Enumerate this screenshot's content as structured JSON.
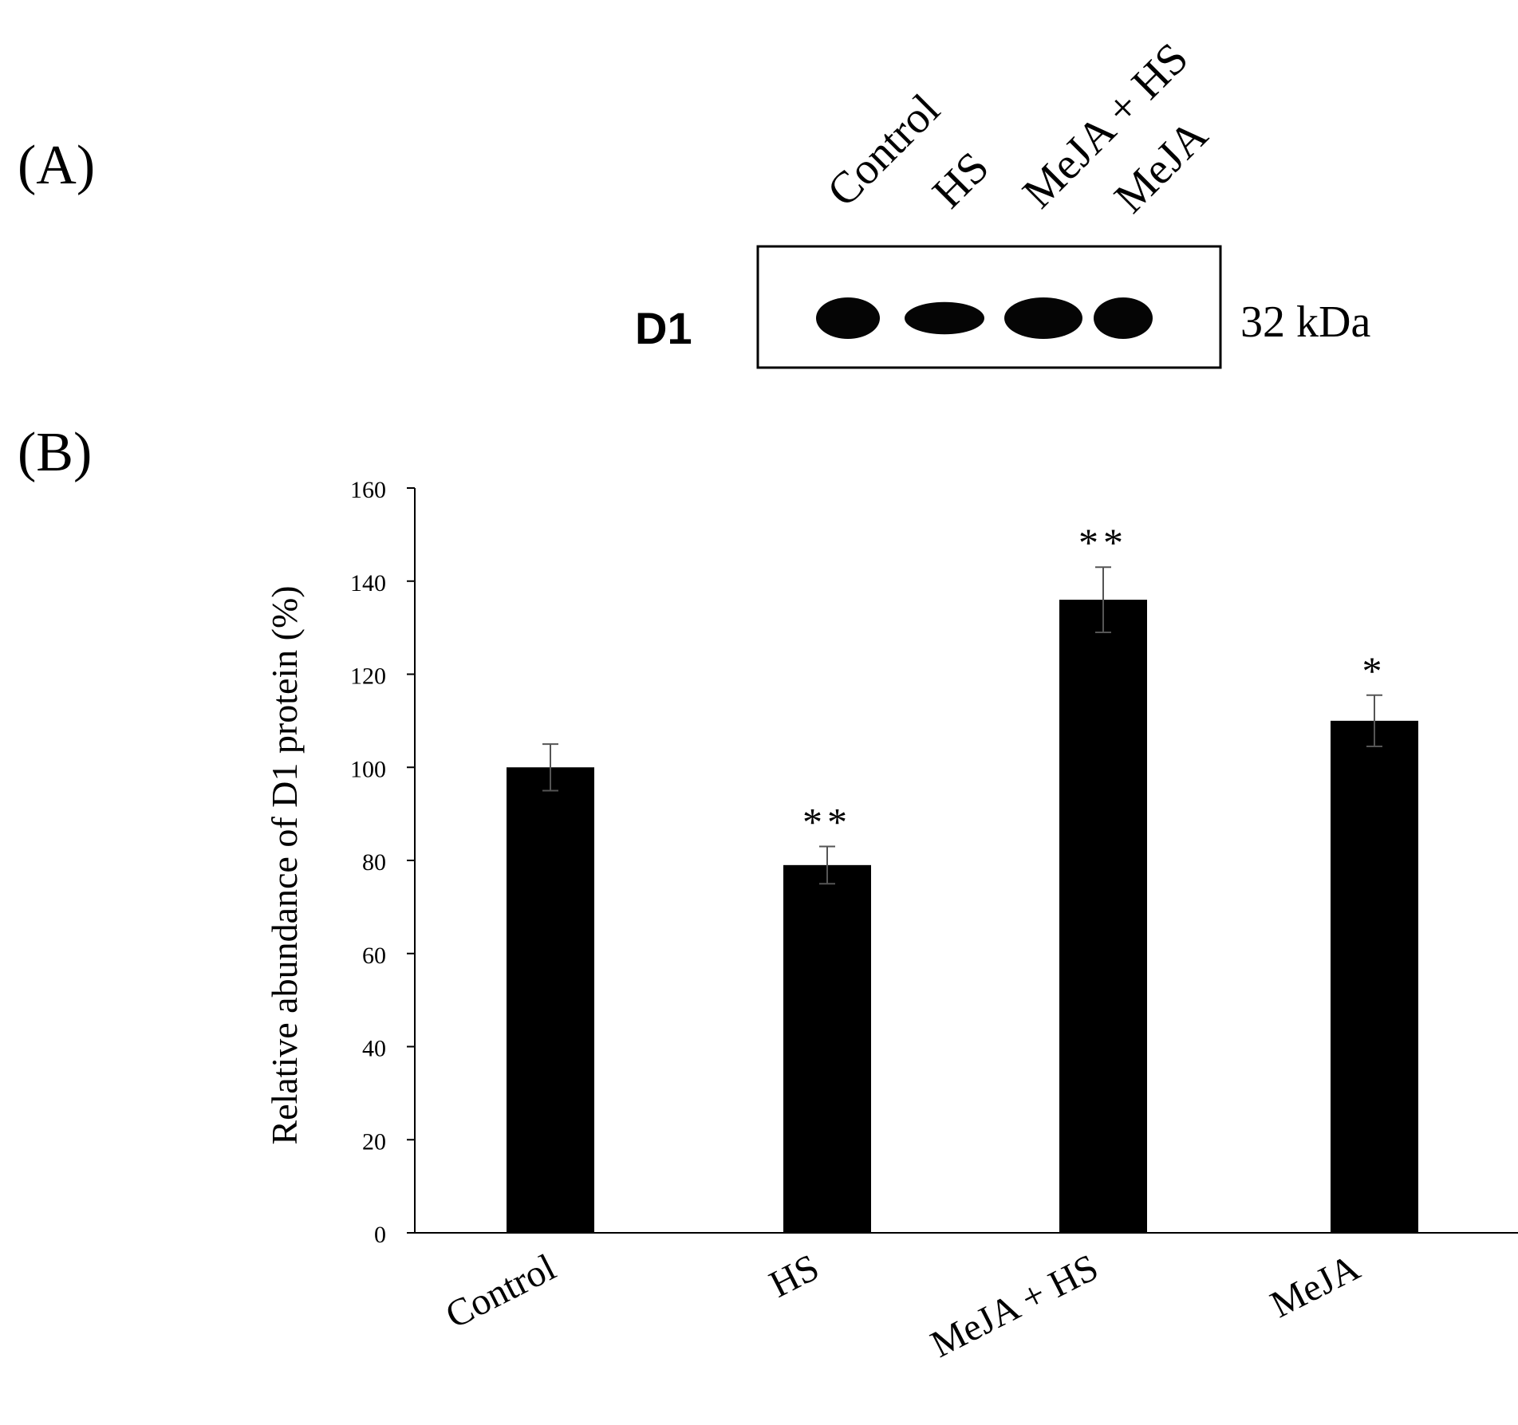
{
  "panel_a": {
    "label": "(A)",
    "lanes": [
      "Control",
      "HS",
      "MeJA + HS",
      "MeJA"
    ],
    "protein": "D1",
    "size": "32 kDa",
    "band_intensities": [
      1.0,
      0.78,
      1.0,
      1.0
    ]
  },
  "panel_b": {
    "label": "(B)"
  },
  "chart_data": {
    "type": "bar",
    "categories": [
      "Control",
      "HS",
      "MeJA + HS",
      "MeJA"
    ],
    "values": [
      100,
      79,
      136,
      110
    ],
    "errors": [
      5,
      4,
      7,
      5.5
    ],
    "annotations": [
      "",
      "**",
      "**",
      "*"
    ],
    "title": "",
    "xlabel": "",
    "ylabel": "Relative abundance of D1 protein (%)",
    "ylim": [
      0,
      160
    ],
    "yticks": [
      0,
      20,
      40,
      60,
      80,
      100,
      120,
      140,
      160
    ],
    "grid": false,
    "bar_color": "#000000"
  }
}
